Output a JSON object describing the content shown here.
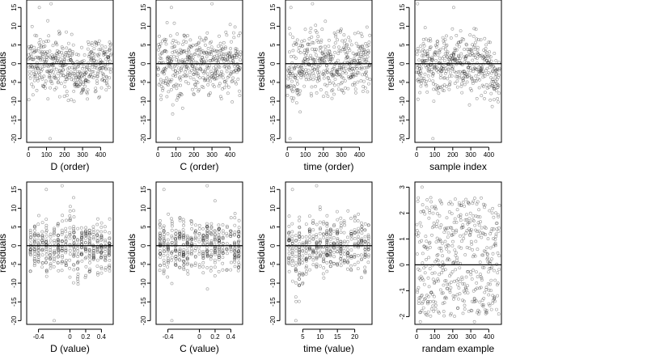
{
  "chart_data": [
    {
      "type": "scatter",
      "xlabel": "D (order)",
      "ylabel": "residuals",
      "xlim": [
        -10,
        470
      ],
      "ylim": [
        -21,
        17
      ],
      "xticks": [
        0,
        100,
        200,
        300,
        400
      ],
      "yticks": [
        -20,
        -15,
        -10,
        -5,
        0,
        5,
        10,
        15
      ],
      "reference_line_y": 0,
      "approx_points": 460,
      "notable_points": [
        {
          "x": 60,
          "y": 15
        },
        {
          "x": 125,
          "y": 16
        },
        {
          "x": 120,
          "y": -20
        }
      ],
      "pattern": "residuals mostly between -10 and 10 scattered across order index with a dip around 300"
    },
    {
      "type": "scatter",
      "xlabel": "C (order)",
      "ylabel": "residuals",
      "xlim": [
        -10,
        470
      ],
      "ylim": [
        -21,
        17
      ],
      "xticks": [
        0,
        100,
        200,
        300,
        400
      ],
      "yticks": [
        -20,
        -15,
        -10,
        -5,
        0,
        5,
        10,
        15
      ],
      "reference_line_y": 0,
      "approx_points": 460,
      "notable_points": [
        {
          "x": 75,
          "y": 15
        },
        {
          "x": 300,
          "y": 16
        },
        {
          "x": 115,
          "y": -20
        }
      ],
      "pattern": "residuals mostly between -10 and 10 scattered across order index"
    },
    {
      "type": "scatter",
      "xlabel": "time (order)",
      "ylabel": "residuals",
      "xlim": [
        -10,
        470
      ],
      "ylim": [
        -21,
        17
      ],
      "xticks": [
        0,
        100,
        200,
        300,
        400
      ],
      "yticks": [
        -20,
        -15,
        -10,
        -5,
        0,
        5,
        10,
        15
      ],
      "reference_line_y": 0,
      "approx_points": 460,
      "notable_points": [
        {
          "x": 20,
          "y": 15
        },
        {
          "x": 140,
          "y": 16
        },
        {
          "x": 15,
          "y": -20
        }
      ],
      "pattern": "residuals mostly between -10 and 10, lower values near the start of the order"
    },
    {
      "type": "scatter",
      "xlabel": "sample index",
      "ylabel": "residuals",
      "xlim": [
        -10,
        470
      ],
      "ylim": [
        -21,
        17
      ],
      "xticks": [
        0,
        100,
        200,
        300,
        400
      ],
      "yticks": [
        -20,
        -15,
        -10,
        -5,
        0,
        5,
        10,
        15
      ],
      "reference_line_y": 0,
      "approx_points": 460,
      "notable_points": [
        {
          "x": 5,
          "y": 16
        },
        {
          "x": 205,
          "y": 15
        },
        {
          "x": 90,
          "y": -20
        }
      ],
      "pattern": "residuals mostly between -10 and 10, dip near index 430"
    },
    {
      "type": "scatter",
      "xlabel": "D (value)",
      "ylabel": "residuals",
      "xlim": [
        -0.55,
        0.55
      ],
      "ylim": [
        -21,
        17
      ],
      "xticks": [
        -0.4,
        0.0,
        0.2,
        0.4
      ],
      "yticks": [
        -20,
        -15,
        -10,
        -5,
        0,
        5,
        10,
        15
      ],
      "reference_line_y": 0,
      "approx_points": 460,
      "notable_points": [
        {
          "x": -0.3,
          "y": 15
        },
        {
          "x": -0.1,
          "y": 16
        },
        {
          "x": -0.2,
          "y": -20
        }
      ],
      "pattern": "points stacked in vertical columns at discrete D values between -0.5 and 0.5"
    },
    {
      "type": "scatter",
      "xlabel": "C (value)",
      "ylabel": "residuals",
      "xlim": [
        -0.55,
        0.55
      ],
      "ylim": [
        -21,
        17
      ],
      "xticks": [
        -0.4,
        0.0,
        0.2,
        0.4
      ],
      "yticks": [
        -20,
        -15,
        -10,
        -5,
        0,
        5,
        10,
        15
      ],
      "reference_line_y": 0,
      "approx_points": 460,
      "notable_points": [
        {
          "x": -0.45,
          "y": 15
        },
        {
          "x": 0.1,
          "y": 16
        },
        {
          "x": -0.35,
          "y": -20
        }
      ],
      "pattern": "points stacked in vertical columns at discrete C values between -0.5 and 0.5"
    },
    {
      "type": "scatter",
      "xlabel": "time (value)",
      "ylabel": "residuals",
      "xlim": [
        0,
        25
      ],
      "ylim": [
        -21,
        17
      ],
      "xticks": [
        5,
        10,
        15,
        20
      ],
      "yticks": [
        -20,
        -15,
        -10,
        -5,
        0,
        5,
        10,
        15
      ],
      "reference_line_y": 0,
      "approx_points": 460,
      "notable_points": [
        {
          "x": 2,
          "y": 15
        },
        {
          "x": 9,
          "y": 16
        },
        {
          "x": 3,
          "y": -20
        }
      ],
      "pattern": "points stacked in vertical columns at discrete time values from 1 to 24"
    },
    {
      "type": "scatter",
      "xlabel": "randam example",
      "ylabel": "residuals",
      "xlim": [
        -10,
        470
      ],
      "ylim": [
        -2.3,
        3.2
      ],
      "xticks": [
        0,
        100,
        200,
        300,
        400
      ],
      "yticks": [
        -2,
        -1,
        0,
        1,
        2,
        3
      ],
      "reference_line_y": 0,
      "approx_points": 460,
      "notable_points": [
        {
          "x": 30,
          "y": 3
        },
        {
          "x": 20,
          "y": -2.2
        },
        {
          "x": 320,
          "y": -2.2
        }
      ],
      "pattern": "random residuals uniformly scattered between -2 and 3"
    }
  ]
}
